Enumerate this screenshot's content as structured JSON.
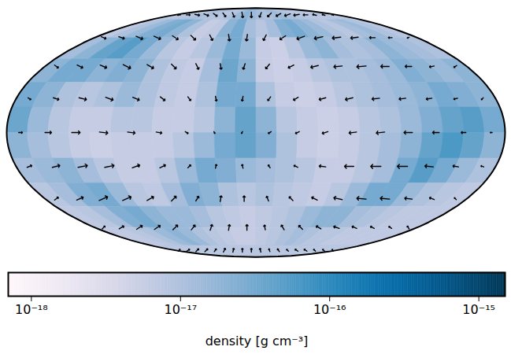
{
  "chart_data": {
    "type": "mollweide_map",
    "density": {
      "lon": [
        -172.5,
        -157.5,
        -142.5,
        -127.5,
        -112.5,
        -97.5,
        -82.5,
        -67.5,
        -52.5,
        -37.5,
        -22.5,
        -7.5,
        7.5,
        22.5,
        37.5,
        52.5,
        67.5,
        82.5,
        97.5,
        112.5,
        127.5,
        142.5,
        157.5,
        172.5
      ],
      "lat": [
        82.5,
        67.5,
        52.5,
        37.5,
        22.5,
        7.5,
        -7.5,
        -22.5,
        -37.5,
        -52.5,
        -67.5,
        -82.5
      ],
      "values": [
        [
          8e-18,
          8e-18,
          9e-18,
          1e-17,
          1.2e-17,
          1e-17,
          9e-18,
          8e-18,
          1e-17,
          1.5e-17,
          2e-17,
          1.5e-17,
          1.2e-17,
          1e-17,
          1.2e-17,
          1.5e-17,
          1.2e-17,
          1e-17,
          9e-18,
          8e-18,
          8e-18,
          9e-18,
          8e-18,
          8e-18
        ],
        [
          7e-18,
          1e-17,
          1.5e-17,
          2.5e-17,
          3e-17,
          2e-17,
          1e-17,
          6e-18,
          7e-18,
          2e-17,
          3e-17,
          1.2e-17,
          8e-18,
          1.2e-17,
          2.5e-17,
          3e-17,
          2e-17,
          1.5e-17,
          1e-17,
          8e-18,
          1.2e-17,
          1.5e-17,
          1e-17,
          8e-18
        ],
        [
          1.2e-17,
          2e-17,
          4e-17,
          5e-17,
          3e-17,
          1.5e-17,
          8e-18,
          6e-18,
          8e-18,
          1.5e-17,
          3e-17,
          1.5e-17,
          6e-18,
          5e-18,
          8e-18,
          1.5e-17,
          2e-17,
          1.2e-17,
          1e-17,
          1.2e-17,
          2e-17,
          1.5e-17,
          1.2e-17,
          1e-17
        ],
        [
          2e-17,
          3e-17,
          3e-17,
          2e-17,
          2.5e-17,
          2e-17,
          1e-17,
          7e-18,
          6e-18,
          1.2e-17,
          3.5e-17,
          2e-17,
          6e-18,
          5e-18,
          6e-18,
          8e-18,
          1e-17,
          1e-17,
          1.2e-17,
          1.5e-17,
          2.5e-17,
          2e-17,
          1.5e-17,
          2e-17
        ],
        [
          3e-17,
          2e-17,
          1e-17,
          8e-18,
          1e-17,
          1.5e-17,
          1e-17,
          7e-18,
          6e-18,
          1e-17,
          3e-17,
          3e-17,
          1e-17,
          6e-18,
          5e-18,
          6e-18,
          8e-18,
          1e-17,
          1.2e-17,
          1.5e-17,
          2e-17,
          3e-17,
          2.5e-17,
          2e-17
        ],
        [
          3.5e-17,
          1.5e-17,
          8e-18,
          6e-18,
          6e-18,
          8e-18,
          8e-18,
          6e-18,
          6e-18,
          8e-18,
          2e-17,
          4e-17,
          2e-17,
          8e-18,
          6e-18,
          5e-18,
          6e-18,
          8e-18,
          1e-17,
          1.5e-17,
          2.5e-17,
          4e-17,
          5e-17,
          3e-17
        ],
        [
          2e-17,
          1.2e-17,
          8e-18,
          6e-18,
          5e-18,
          6e-18,
          6e-18,
          6e-18,
          8e-18,
          1.5e-17,
          3e-17,
          4e-17,
          2.5e-17,
          1e-17,
          6e-18,
          5e-18,
          6e-18,
          8e-18,
          1.2e-17,
          2e-17,
          4e-17,
          6e-17,
          4e-17,
          2e-17
        ],
        [
          1.2e-17,
          1.5e-17,
          2e-17,
          1.2e-17,
          8e-18,
          6e-18,
          6e-18,
          8e-18,
          1.5e-17,
          3e-17,
          2.5e-17,
          1.5e-17,
          1.2e-17,
          1e-17,
          8e-18,
          6e-18,
          6e-18,
          8e-18,
          1.2e-17,
          3e-17,
          5e-17,
          3e-17,
          1.5e-17,
          1e-17
        ],
        [
          8e-18,
          1.2e-17,
          2.5e-17,
          3e-17,
          1.5e-17,
          8e-18,
          7e-18,
          1.2e-17,
          2.5e-17,
          2e-17,
          1e-17,
          8e-18,
          1e-17,
          8e-18,
          7e-18,
          6e-18,
          8e-18,
          1.5e-17,
          3e-17,
          3e-17,
          1.5e-17,
          1e-17,
          8e-18,
          7e-18
        ],
        [
          7e-18,
          8e-18,
          1.2e-17,
          2.5e-17,
          3e-17,
          2e-17,
          1.5e-17,
          1.5e-17,
          1.2e-17,
          8e-18,
          7e-18,
          6e-18,
          7e-18,
          8e-18,
          1e-17,
          1.5e-17,
          2e-17,
          2e-17,
          1.2e-17,
          1e-17,
          8e-18,
          7e-18,
          7e-18,
          7e-18
        ],
        [
          7e-18,
          7e-18,
          8e-18,
          1e-17,
          1.5e-17,
          2e-17,
          1.5e-17,
          1e-17,
          8e-18,
          7e-18,
          6e-18,
          6e-18,
          7e-18,
          8e-18,
          1e-17,
          1.2e-17,
          1e-17,
          8e-18,
          8e-18,
          7e-18,
          7e-18,
          7e-18,
          7e-18,
          7e-18
        ],
        [
          8e-18,
          8e-18,
          8e-18,
          8e-18,
          8e-18,
          8e-18,
          8e-18,
          8e-18,
          8e-18,
          8e-18,
          8e-18,
          8e-18,
          8e-18,
          8e-18,
          8e-18,
          8e-18,
          8e-18,
          8e-18,
          8e-18,
          8e-18,
          8e-18,
          8e-18,
          8e-18,
          8e-18
        ]
      ]
    },
    "vectors": {
      "lon": [
        -170,
        -150,
        -130,
        -110,
        -90,
        -70,
        -50,
        -30,
        -10,
        10,
        30,
        50,
        70,
        90,
        110,
        130,
        150,
        170
      ],
      "lat": [
        80,
        60,
        40,
        20,
        0,
        -20,
        -40,
        -60,
        -80
      ],
      "u": [
        [
          0.3,
          0.4,
          0.5,
          0.5,
          0.4,
          0.3,
          0.2,
          0.1,
          0,
          -0.2,
          -0.4,
          -0.5,
          -0.6,
          -0.6,
          -0.5,
          -0.4,
          -0.3,
          -0.2
        ],
        [
          0.5,
          0.6,
          0.7,
          0.7,
          0.6,
          0.5,
          0.3,
          0.1,
          -0.1,
          -0.3,
          -0.6,
          -0.8,
          -0.9,
          -0.9,
          -0.8,
          -0.6,
          -0.4,
          -0.2
        ],
        [
          0.4,
          0.6,
          0.7,
          0.8,
          0.7,
          0.5,
          0.3,
          0.1,
          -0.2,
          -0.4,
          -0.6,
          -0.8,
          -0.9,
          -1.0,
          -0.9,
          -0.7,
          -0.5,
          -0.3
        ],
        [
          0.3,
          0.6,
          0.8,
          0.8,
          0.7,
          0.5,
          0.3,
          0.1,
          -0.1,
          -0.3,
          -0.5,
          -0.7,
          -0.8,
          -0.8,
          -0.7,
          -0.6,
          -0.4,
          -0.2
        ],
        [
          0.4,
          0.7,
          0.9,
          0.9,
          0.8,
          0.6,
          0.3,
          0.1,
          -0.1,
          -0.3,
          -0.4,
          -0.6,
          -0.8,
          -0.9,
          -0.9,
          -0.7,
          -0.5,
          -0.2
        ],
        [
          0.5,
          0.8,
          1.0,
          1.0,
          0.8,
          0.6,
          0.3,
          0.1,
          -0.1,
          -0.2,
          -0.4,
          -0.7,
          -1.0,
          -1.1,
          -1.1,
          -0.9,
          -0.6,
          -0.3
        ],
        [
          0.4,
          0.7,
          0.9,
          0.9,
          0.7,
          0.5,
          0.3,
          0.1,
          0,
          -0.2,
          -0.4,
          -0.6,
          -0.9,
          -1.0,
          -1.0,
          -0.8,
          -0.5,
          -0.2
        ],
        [
          0.3,
          0.5,
          0.6,
          0.6,
          0.5,
          0.4,
          0.2,
          0.1,
          0,
          -0.1,
          -0.3,
          -0.4,
          -0.5,
          -0.6,
          -0.5,
          -0.4,
          -0.3,
          -0.2
        ],
        [
          0.2,
          0.3,
          0.3,
          0.3,
          0.2,
          0.2,
          0.1,
          0,
          0,
          -0.1,
          -0.1,
          -0.2,
          -0.2,
          -0.3,
          -0.3,
          -0.2,
          -0.2,
          -0.1
        ]
      ],
      "v": [
        [
          0.1,
          0,
          -0.1,
          -0.2,
          -0.3,
          -0.4,
          -0.5,
          -0.6,
          -0.6,
          -0.5,
          -0.4,
          -0.3,
          -0.2,
          -0.1,
          0,
          0.1,
          0.1,
          0.1
        ],
        [
          -0.2,
          -0.2,
          -0.3,
          -0.3,
          -0.4,
          -0.5,
          -0.6,
          -0.7,
          -0.7,
          -0.6,
          -0.4,
          -0.3,
          -0.2,
          -0.1,
          -0.1,
          0,
          0,
          -0.1
        ],
        [
          -0.3,
          -0.3,
          -0.3,
          -0.4,
          -0.4,
          -0.5,
          -0.6,
          -0.6,
          -0.6,
          -0.5,
          -0.3,
          -0.2,
          -0.1,
          -0.1,
          0,
          0,
          -0.1,
          -0.2
        ],
        [
          -0.2,
          -0.2,
          -0.2,
          -0.3,
          -0.3,
          -0.4,
          -0.4,
          -0.5,
          -0.5,
          -0.4,
          -0.3,
          -0.2,
          -0.2,
          -0.1,
          -0.1,
          -0.1,
          -0.1,
          -0.2
        ],
        [
          0,
          0,
          0,
          -0.1,
          -0.1,
          -0.1,
          -0.2,
          -0.2,
          -0.2,
          -0.2,
          -0.2,
          -0.2,
          -0.1,
          -0.1,
          0,
          0,
          0,
          0
        ],
        [
          0.2,
          0.2,
          0.2,
          0.2,
          0.3,
          0.3,
          0.3,
          0.4,
          0.4,
          0.3,
          0.2,
          0.1,
          0,
          0,
          0,
          0.1,
          0.1,
          0.1
        ],
        [
          0.3,
          0.3,
          0.4,
          0.4,
          0.4,
          0.5,
          0.5,
          0.6,
          0.6,
          0.5,
          0.4,
          0.3,
          0.2,
          0.1,
          0.1,
          0.1,
          0.2,
          0.2
        ],
        [
          0.3,
          0.3,
          0.4,
          0.4,
          0.5,
          0.5,
          0.6,
          0.6,
          0.6,
          0.5,
          0.5,
          0.4,
          0.3,
          0.2,
          0.2,
          0.2,
          0.2,
          0.3
        ],
        [
          0.2,
          0.2,
          0.3,
          0.3,
          0.3,
          0.4,
          0.4,
          0.4,
          0.4,
          0.4,
          0.3,
          0.3,
          0.2,
          0.2,
          0.2,
          0.2,
          0.2,
          0.2
        ]
      ]
    },
    "colorbar": {
      "label": "density [g cm⁻³]",
      "range": [
        7e-19,
        1.5e-15
      ],
      "ticks": [
        {
          "value": 1e-18,
          "label": "10⁻¹⁸"
        },
        {
          "value": 1e-17,
          "label": "10⁻¹⁷"
        },
        {
          "value": 1e-16,
          "label": "10⁻¹⁶"
        },
        {
          "value": 1e-15,
          "label": "10⁻¹⁵"
        }
      ],
      "log": true,
      "color": "PuBu"
    }
  }
}
